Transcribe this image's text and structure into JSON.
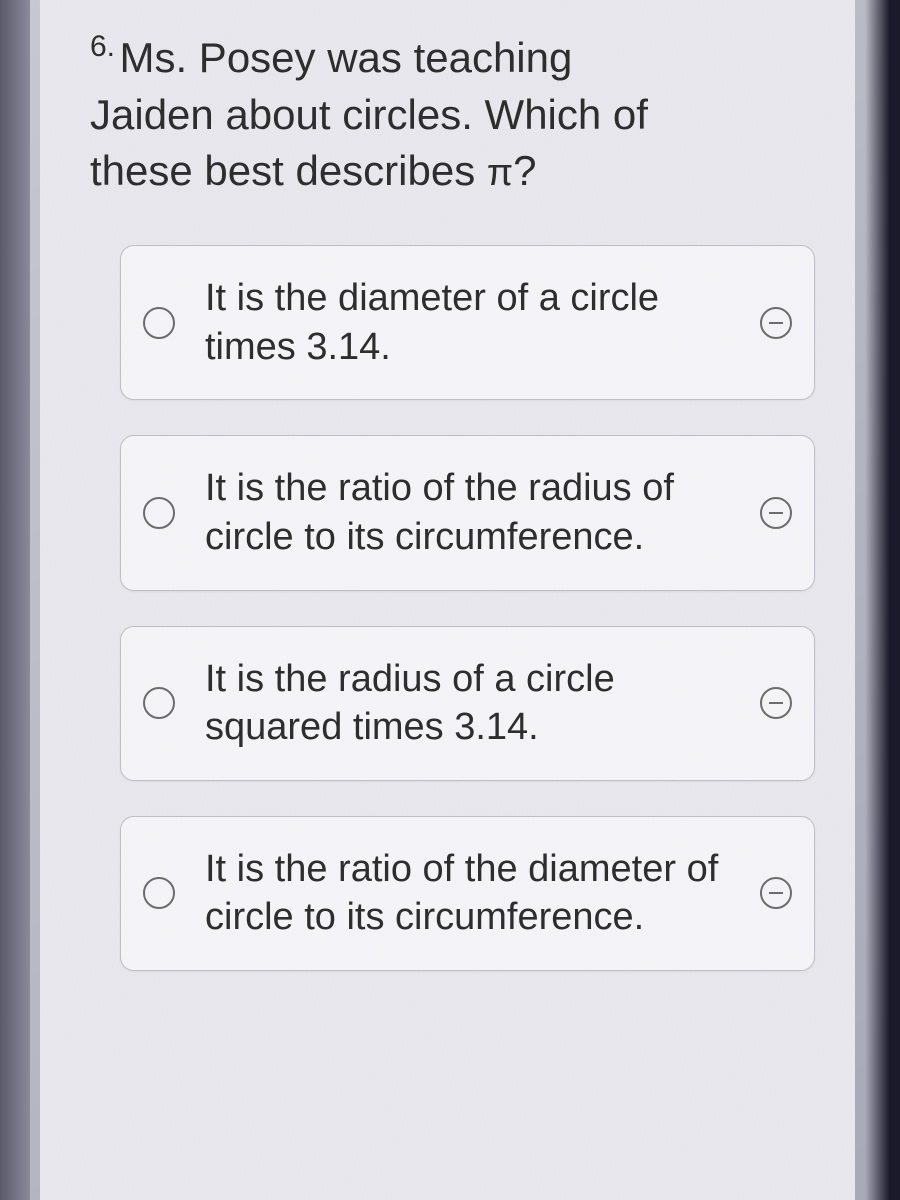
{
  "question": {
    "number": "6.",
    "text_line1": "Ms. Posey was teaching",
    "text_line2": "Jaiden about circles. Which of",
    "text_line3": "these best describes ",
    "pi": "π",
    "text_end": "?"
  },
  "options": [
    {
      "text": "It is the diameter of a circle times 3.14."
    },
    {
      "text": "It is the ratio of the radius of circle to its circumference."
    },
    {
      "text": "It is the radius of a circle squared times 3.14."
    },
    {
      "text": "It is the ratio of the diameter of circle to its circumference."
    }
  ],
  "styling": {
    "background_color": "#e8e8ed",
    "card_background": "#f5f5f8",
    "card_border_color": "#bfbfc8",
    "card_border_radius": 14,
    "text_color": "#2a2a2a",
    "radio_border_color": "#6a6a6a",
    "question_fontsize": 42,
    "number_fontsize": 30,
    "option_fontsize": 38
  }
}
